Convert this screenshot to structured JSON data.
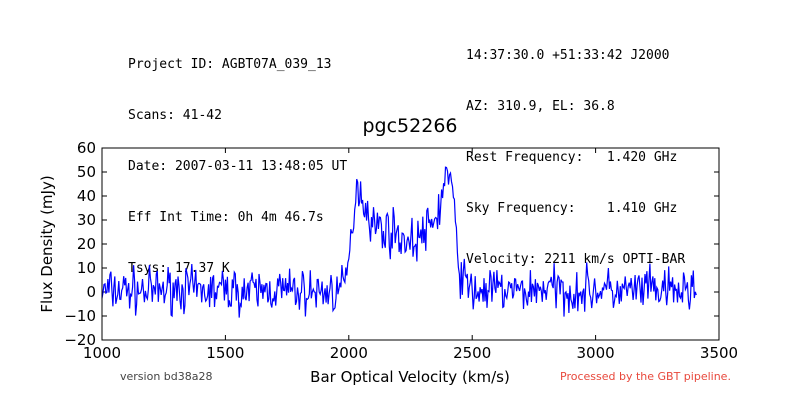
{
  "header_left": [
    "Project ID: AGBT07A_039_13",
    "Scans: 41-42",
    "Date: 2007-03-11 13:48:05 UT",
    "Eff Int Time: 0h 4m 46.7s",
    "Tsys: 17.37 K"
  ],
  "header_right": [
    "14:37:30.0 +51:33:42 J2000",
    "AZ: 310.9, EL: 36.8",
    "Rest Frequency:   1.420 GHz",
    "Sky Frequency:    1.410 GHz",
    "Velocity: 2211 km/s OPTI-BAR"
  ],
  "footer": {
    "version": "version bd38a28",
    "pipeline": "Processed by the GBT pipeline.",
    "pipeline_color": "#e8483c"
  },
  "chart_data": {
    "type": "line",
    "title": "pgc52266",
    "xlabel": "Bar Optical Velocity (km/s)",
    "ylabel": "Flux Density (mJy)",
    "xlim": [
      1000,
      3500
    ],
    "ylim": [
      -20,
      60
    ],
    "xticks": [
      1000,
      1500,
      2000,
      2500,
      3000,
      3500
    ],
    "yticks": [
      -20,
      -10,
      0,
      10,
      20,
      30,
      40,
      50,
      60
    ],
    "xtick_labels": [
      "1000",
      "1500",
      "2000",
      "2500",
      "3000",
      "3500"
    ],
    "ytick_labels": [
      "−20",
      "−10",
      "0",
      "10",
      "20",
      "30",
      "40",
      "50",
      "60"
    ],
    "grid": false,
    "line_color": "#0000ff",
    "series": [
      {
        "x": [
          1000,
          1100,
          1200,
          1300,
          1400,
          1500,
          1600,
          1700,
          1800,
          1900,
          1980,
          2010,
          2030,
          2060,
          2100,
          2150,
          2200,
          2250,
          2300,
          2340,
          2370,
          2395,
          2410,
          2430,
          2450,
          2500,
          2600,
          2700,
          2800,
          2900,
          3000,
          3100,
          3200,
          3300,
          3410
        ],
        "y": [
          0,
          1,
          0,
          2,
          0,
          1,
          0,
          1,
          0,
          0,
          1,
          20,
          46,
          38,
          28,
          26,
          24,
          20,
          24,
          28,
          36,
          50,
          48,
          30,
          8,
          0,
          1,
          0,
          2,
          0,
          1,
          0,
          1,
          0,
          1
        ]
      }
    ]
  }
}
